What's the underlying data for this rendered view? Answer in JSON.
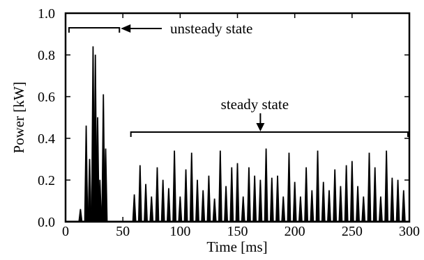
{
  "chart_data": {
    "type": "line",
    "title": "",
    "xlabel": "Time [ms]",
    "ylabel": "Power  [kW]",
    "xlim": [
      0,
      300
    ],
    "ylim": [
      0.0,
      1.0
    ],
    "x_ticks": [
      0,
      50,
      100,
      150,
      200,
      250,
      300
    ],
    "y_ticks": [
      0.0,
      0.2,
      0.4,
      0.6,
      0.8,
      1.0
    ],
    "x_tick_labels": [
      "0",
      "50",
      "100",
      "150",
      "200",
      "250",
      "300"
    ],
    "y_tick_labels": [
      "0.0",
      "0.2",
      "0.4",
      "0.6",
      "0.8",
      "1.0"
    ],
    "grid": false,
    "line_color": "#000000",
    "series": [
      {
        "x": [
          13,
          18,
          21,
          24,
          26,
          28,
          30,
          33,
          35,
          60,
          65,
          70,
          75,
          80,
          85,
          90,
          95,
          100,
          105,
          110,
          115,
          120,
          125,
          130,
          135,
          140,
          145,
          150,
          155,
          160,
          165,
          170,
          175,
          180,
          185,
          190,
          195,
          200,
          205,
          210,
          215,
          220,
          225,
          230,
          235,
          240,
          245,
          250,
          255,
          260,
          265,
          270,
          275,
          280,
          285,
          290,
          295
        ],
        "values": [
          0.06,
          0.46,
          0.3,
          0.84,
          0.8,
          0.5,
          0.2,
          0.61,
          0.35,
          0.13,
          0.27,
          0.18,
          0.12,
          0.26,
          0.2,
          0.16,
          0.34,
          0.12,
          0.25,
          0.33,
          0.2,
          0.15,
          0.22,
          0.11,
          0.34,
          0.17,
          0.26,
          0.28,
          0.12,
          0.26,
          0.22,
          0.2,
          0.35,
          0.21,
          0.22,
          0.12,
          0.33,
          0.19,
          0.12,
          0.26,
          0.15,
          0.34,
          0.19,
          0.15,
          0.25,
          0.17,
          0.27,
          0.29,
          0.17,
          0.12,
          0.33,
          0.26,
          0.12,
          0.34,
          0.21,
          0.2,
          0.15
        ]
      }
    ],
    "annotations": [
      {
        "label": "unsteady state",
        "x_range": [
          3,
          47
        ],
        "y": 0.93
      },
      {
        "label": "steady state",
        "x_range": [
          57,
          300
        ],
        "y": 0.43
      }
    ]
  }
}
